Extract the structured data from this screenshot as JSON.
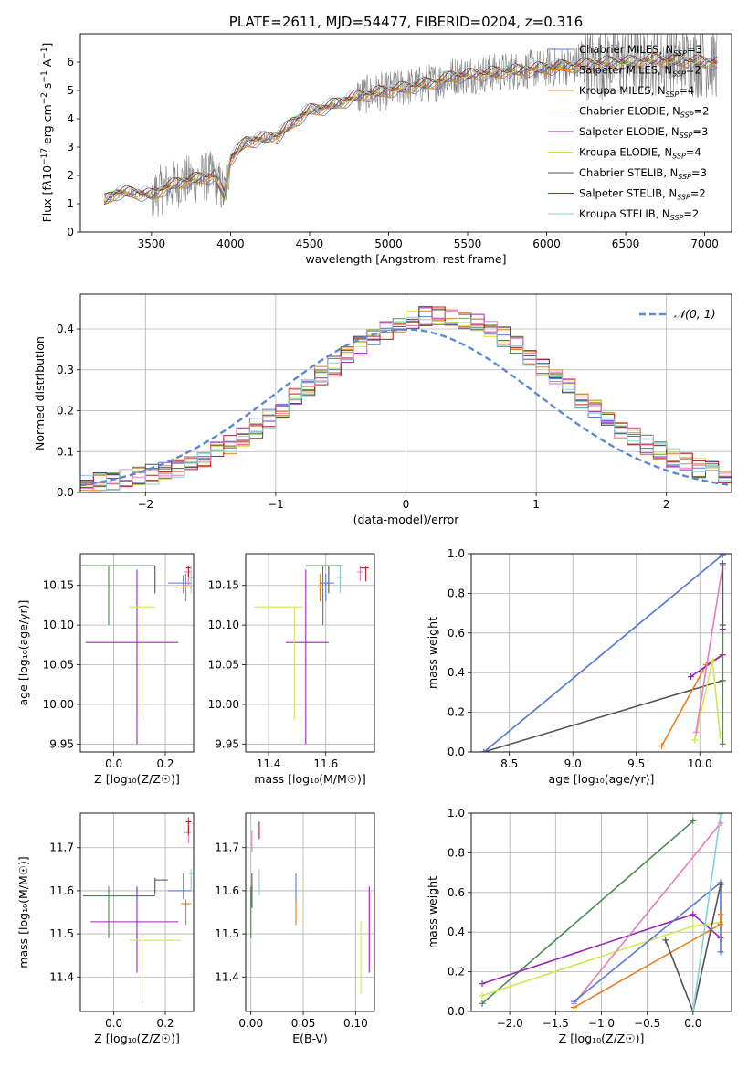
{
  "colors": {
    "Chabrier MILES": "#5b78d6",
    "Salpeter MILES": "#e87e22",
    "Kroupa MILES": "#d8862a",
    "Chabrier ELODIE": "#4a8a50",
    "Salpeter ELODIE": "#9b27b5",
    "Kroupa ELODIE": "#cfe84b",
    "Chabrier STELIB": "#555555",
    "Salpeter STELIB": "#b81d24",
    "Kroupa STELIB": "#86d1d7",
    "pink": "#e77cbf",
    "data": "#808080",
    "normal": "#5a88d8"
  },
  "chart_data": [
    {
      "id": "spectrum",
      "type": "line",
      "title": "PLATE=2611, MJD=54477, FIBERID=0204, z=0.316",
      "xlabel": "wavelength [Angstrom, rest frame]",
      "ylabel_html": "Flux [f<tspan font-style='italic'>λ</tspan>10<tspan dy='-5' font-size='9'>−17</tspan><tspan dy='5'> erg cm</tspan><tspan dy='-5' font-size='9'>−2</tspan><tspan dy='5'> s</tspan><tspan dy='-5' font-size='9'>−1</tspan><tspan dy='5'> A</tspan><tspan dy='-5' font-size='9'>−1</tspan><tspan dy='5'>]</tspan>",
      "xlim": [
        3050,
        7170
      ],
      "ylim": [
        0,
        7
      ],
      "xticks": [
        3500,
        4000,
        4500,
        5000,
        5500,
        6000,
        6500,
        7000
      ],
      "yticks": [
        0,
        1,
        2,
        3,
        4,
        5,
        6
      ],
      "continuum": [
        [
          3200,
          1.1
        ],
        [
          3280,
          1.4
        ],
        [
          3400,
          1.4
        ],
        [
          3500,
          1.3
        ],
        [
          3600,
          1.6
        ],
        [
          3700,
          1.8
        ],
        [
          3800,
          1.9
        ],
        [
          3900,
          2.0
        ],
        [
          3960,
          1.3
        ],
        [
          4000,
          2.6
        ],
        [
          4100,
          3.2
        ],
        [
          4200,
          3.3
        ],
        [
          4300,
          3.4
        ],
        [
          4400,
          3.9
        ],
        [
          4500,
          4.3
        ],
        [
          4600,
          4.4
        ],
        [
          4700,
          4.6
        ],
        [
          4800,
          4.8
        ],
        [
          4900,
          4.9
        ],
        [
          5000,
          5.0
        ],
        [
          5100,
          5.1
        ],
        [
          5200,
          5.2
        ],
        [
          5300,
          5.3
        ],
        [
          5400,
          5.5
        ],
        [
          5500,
          5.55
        ],
        [
          5600,
          5.6
        ],
        [
          5700,
          5.65
        ],
        [
          5800,
          5.7
        ],
        [
          5900,
          5.75
        ],
        [
          6000,
          5.8
        ],
        [
          6100,
          5.85
        ],
        [
          6200,
          5.9
        ],
        [
          6300,
          5.95
        ],
        [
          6400,
          6.0
        ],
        [
          6500,
          6.0
        ],
        [
          6600,
          6.05
        ],
        [
          6700,
          6.1
        ],
        [
          6800,
          6.05
        ],
        [
          6900,
          6.05
        ],
        [
          7000,
          6.0
        ],
        [
          7080,
          6.0
        ]
      ],
      "models": [
        {
          "name": "Chabrier MILES",
          "ssp": "3"
        },
        {
          "name": "Salpeter MILES",
          "ssp": "2"
        },
        {
          "name": "Kroupa MILES",
          "ssp": "4"
        },
        {
          "name": "Chabrier ELODIE",
          "ssp": "2"
        },
        {
          "name": "Salpeter ELODIE",
          "ssp": "3"
        },
        {
          "name": "Kroupa ELODIE",
          "ssp": "4"
        },
        {
          "name": "Chabrier STELIB",
          "ssp": "3"
        },
        {
          "name": "Salpeter STELIB",
          "ssp": "2"
        },
        {
          "name": "Kroupa STELIB",
          "ssp": "2"
        }
      ]
    },
    {
      "id": "residuals",
      "type": "histogram",
      "xlabel": "(data-model)/error",
      "ylabel": "Normed distribution",
      "xlim": [
        -2.5,
        2.5
      ],
      "ylim": [
        0,
        0.485
      ],
      "xticks": [
        -2,
        -1,
        0,
        1,
        2
      ],
      "xtick_labels": [
        "−2",
        "−1",
        "0",
        "1",
        "2"
      ],
      "yticks": [
        0.0,
        0.1,
        0.2,
        0.3,
        0.4
      ],
      "grid": true,
      "legend": "top-right",
      "legend_label": "𝒩(0, 1)",
      "bin_width": 0.1
    },
    {
      "id": "age_vs_Z",
      "type": "errorbar",
      "xlabel": "Z [log₁₀(Z/Z☉)]",
      "ylabel": "age  [log₁₀(age/yr)]",
      "xlim": [
        -0.13,
        0.31
      ],
      "ylim": [
        9.94,
        10.19
      ],
      "xticks": [
        0.0,
        0.2
      ],
      "yticks": [
        9.95,
        10.0,
        10.05,
        10.1,
        10.15
      ],
      "points": [
        {
          "c": "Chabrier ELODIE",
          "x": -0.02,
          "y": 10.175,
          "xe": [
            -0.13,
            0.16
          ],
          "ye": [
            10.1,
            10.175
          ]
        },
        {
          "c": "Chabrier STELIB",
          "x": 0.16,
          "y": 10.175,
          "xe": [
            0.16,
            0.16
          ],
          "ye": [
            10.14,
            10.175
          ]
        },
        {
          "c": "Salpeter ELODIE",
          "x": 0.09,
          "y": 10.078,
          "xe": [
            -0.11,
            0.25
          ],
          "ye": [
            9.95,
            10.17
          ]
        },
        {
          "c": "Kroupa ELODIE",
          "x": 0.11,
          "y": 10.123,
          "xe": [
            0.06,
            0.16
          ],
          "ye": [
            9.98,
            10.123
          ]
        },
        {
          "c": "Chabrier MILES",
          "x": 0.27,
          "y": 10.153,
          "xe": [
            0.21,
            0.3
          ],
          "ye": [
            10.14,
            10.163
          ]
        },
        {
          "c": "Salpeter MILES",
          "x": 0.28,
          "y": 10.148,
          "xe": [
            0.26,
            0.3
          ],
          "ye": [
            10.13,
            10.165
          ]
        },
        {
          "c": "pink",
          "x": 0.29,
          "y": 10.167,
          "xe": [
            0.27,
            0.3
          ],
          "ye": [
            10.15,
            10.175
          ]
        },
        {
          "c": "Salpeter STELIB",
          "x": 0.29,
          "y": 10.172,
          "xe": [
            0.28,
            0.3
          ],
          "ye": [
            10.16,
            10.175
          ]
        },
        {
          "c": "Kroupa STELIB",
          "x": 0.3,
          "y": 10.16,
          "xe": [
            0.29,
            0.31
          ],
          "ye": [
            10.14,
            10.175
          ]
        }
      ]
    },
    {
      "id": "age_vs_mass",
      "type": "errorbar",
      "xlabel": "mass [log₁₀(M/M☉)]",
      "ylabel": "",
      "xlim": [
        11.32,
        11.77
      ],
      "ylim": [
        9.94,
        10.19
      ],
      "xticks": [
        11.4,
        11.6
      ],
      "yticks": [
        9.95,
        10.0,
        10.05,
        10.1,
        10.15
      ],
      "points": [
        {
          "c": "Chabrier ELODIE",
          "x": 11.59,
          "y": 10.175,
          "xe": [
            11.53,
            11.66
          ],
          "ye": [
            10.1,
            10.175
          ]
        },
        {
          "c": "Chabrier STELIB",
          "x": 11.61,
          "y": 10.175,
          "xe": [
            11.61,
            11.61
          ],
          "ye": [
            10.14,
            10.175
          ]
        },
        {
          "c": "Salpeter ELODIE",
          "x": 11.53,
          "y": 10.078,
          "xe": [
            11.46,
            11.61
          ],
          "ye": [
            9.95,
            10.17
          ]
        },
        {
          "c": "Kroupa ELODIE",
          "x": 11.49,
          "y": 10.123,
          "xe": [
            11.35,
            11.52
          ],
          "ye": [
            9.98,
            10.123
          ]
        },
        {
          "c": "Chabrier MILES",
          "x": 11.6,
          "y": 10.153,
          "xe": [
            11.58,
            11.63
          ],
          "ye": [
            10.13,
            10.165
          ]
        },
        {
          "c": "Salpeter MILES",
          "x": 11.58,
          "y": 10.148,
          "xe": [
            11.57,
            11.59
          ],
          "ye": [
            10.13,
            10.165
          ]
        },
        {
          "c": "pink",
          "x": 11.72,
          "y": 10.167,
          "xe": [
            11.71,
            11.73
          ],
          "ye": [
            10.155,
            10.175
          ]
        },
        {
          "c": "Salpeter STELIB",
          "x": 11.74,
          "y": 10.172,
          "xe": [
            11.72,
            11.75
          ],
          "ye": [
            10.155,
            10.175
          ]
        },
        {
          "c": "Kroupa STELIB",
          "x": 11.65,
          "y": 10.16,
          "xe": [
            11.64,
            11.66
          ],
          "ye": [
            10.14,
            10.175
          ]
        }
      ]
    },
    {
      "id": "weight_vs_age",
      "type": "line",
      "xlabel": "age  [log₁₀(age/yr)]",
      "ylabel": "mass weight",
      "xlim": [
        8.2,
        10.25
      ],
      "ylim": [
        0,
        1.0
      ],
      "xticks": [
        8.5,
        9.0,
        9.5,
        10.0
      ],
      "yticks": [
        0.0,
        0.2,
        0.4,
        0.6,
        0.8,
        1.0
      ],
      "series": [
        {
          "c": "Chabrier STELIB",
          "pts": [
            [
              8.3,
              0.0
            ],
            [
              10.18,
              0.36
            ]
          ]
        },
        {
          "c": "Kroupa STELIB",
          "pts": [
            [
              8.3,
              0.0
            ],
            [
              10.18,
              0.995
            ]
          ]
        },
        {
          "c": "Chabrier MILES",
          "pts": [
            [
              8.3,
              0.0
            ],
            [
              10.18,
              0.995
            ]
          ]
        },
        {
          "c": "Salpeter MILES",
          "pts": [
            [
              9.7,
              0.03
            ],
            [
              10.05,
              0.44
            ],
            [
              10.18,
              0.49
            ]
          ]
        },
        {
          "c": "Salpeter ELODIE",
          "pts": [
            [
              9.93,
              0.38
            ],
            [
              10.18,
              0.49
            ],
            [
              10.18,
              0.62
            ]
          ]
        },
        {
          "c": "Kroupa ELODIE",
          "pts": [
            [
              9.96,
              0.06
            ],
            [
              10.1,
              0.46
            ],
            [
              10.16,
              0.08
            ]
          ]
        },
        {
          "c": "Chabrier ELODIE",
          "pts": [
            [
              10.18,
              0.04
            ],
            [
              10.18,
              0.95
            ]
          ]
        },
        {
          "c": "pink",
          "pts": [
            [
              9.97,
              0.1
            ],
            [
              10.18,
              0.94
            ]
          ]
        },
        {
          "c": "Chabrier STELIB",
          "pts": [
            [
              10.18,
              0.64
            ],
            [
              10.18,
              0.95
            ]
          ]
        }
      ]
    },
    {
      "id": "mass_vs_Z",
      "type": "errorbar",
      "xlabel": "Z [log₁₀(Z/Z☉)]",
      "ylabel": "mass [log₁₀(M/M☉)]",
      "xlim": [
        -0.13,
        0.31
      ],
      "ylim": [
        11.32,
        11.78
      ],
      "xticks": [
        0.0,
        0.2
      ],
      "yticks": [
        11.4,
        11.5,
        11.6,
        11.7
      ],
      "points": [
        {
          "c": "Chabrier ELODIE",
          "x": -0.02,
          "y": 11.588,
          "xe": [
            -0.12,
            0.16
          ],
          "ye": [
            11.49,
            11.61
          ]
        },
        {
          "c": "Salpeter ELODIE",
          "x": 0.09,
          "y": 11.528,
          "xe": [
            -0.09,
            0.25
          ],
          "ye": [
            11.41,
            11.61
          ]
        },
        {
          "c": "Kroupa ELODIE",
          "x": 0.11,
          "y": 11.485,
          "xe": [
            0.06,
            0.26
          ],
          "ye": [
            11.34,
            11.5
          ]
        },
        {
          "c": "Chabrier STELIB",
          "x": 0.16,
          "y": 11.625,
          "xe": [
            0.16,
            0.21
          ],
          "ye": [
            11.59,
            11.63
          ]
        },
        {
          "c": "Chabrier MILES",
          "x": 0.27,
          "y": 11.6,
          "xe": [
            0.21,
            0.3
          ],
          "ye": [
            11.58,
            11.64
          ]
        },
        {
          "c": "Salpeter MILES",
          "x": 0.28,
          "y": 11.57,
          "xe": [
            0.26,
            0.3
          ],
          "ye": [
            11.52,
            11.58
          ]
        },
        {
          "c": "pink",
          "x": 0.29,
          "y": 11.735,
          "xe": [
            0.27,
            0.3
          ],
          "ye": [
            11.71,
            11.75
          ]
        },
        {
          "c": "Salpeter STELIB",
          "x": 0.29,
          "y": 11.76,
          "xe": [
            0.28,
            0.3
          ],
          "ye": [
            11.73,
            11.77
          ]
        },
        {
          "c": "Kroupa STELIB",
          "x": 0.3,
          "y": 11.64,
          "xe": [
            0.29,
            0.31
          ],
          "ye": [
            11.6,
            11.65
          ]
        }
      ]
    },
    {
      "id": "mass_vs_ebv",
      "type": "errorbar",
      "xlabel": "E(B-V)",
      "ylabel": "",
      "xlim": [
        -0.005,
        0.118
      ],
      "ylim": [
        11.32,
        11.78
      ],
      "xticks": [
        0.0,
        0.05,
        0.1
      ],
      "yticks": [
        11.4,
        11.5,
        11.6,
        11.7
      ],
      "points": [
        {
          "c": "Chabrier ELODIE",
          "x": 0.0,
          "y": 11.59,
          "xe": [
            0.0,
            0.0
          ],
          "ye": [
            11.49,
            11.61
          ]
        },
        {
          "c": "Chabrier STELIB",
          "x": 0.001,
          "y": 11.6,
          "xe": [
            0.001,
            0.001
          ],
          "ye": [
            11.56,
            11.64
          ]
        },
        {
          "c": "pink",
          "x": 0.001,
          "y": 11.71,
          "xe": [
            0.001,
            0.001
          ],
          "ye": [
            11.69,
            11.74
          ]
        },
        {
          "c": "Salpeter STELIB",
          "x": 0.008,
          "y": 11.74,
          "xe": [
            0.008,
            0.008
          ],
          "ye": [
            11.72,
            11.76
          ]
        },
        {
          "c": "Kroupa STELIB",
          "x": 0.008,
          "y": 11.62,
          "xe": [
            0.008,
            0.008
          ],
          "ye": [
            11.59,
            11.65
          ]
        },
        {
          "c": "Chabrier MILES",
          "x": 0.043,
          "y": 11.6,
          "xe": [
            0.043,
            0.043
          ],
          "ye": [
            11.57,
            11.64
          ]
        },
        {
          "c": "Salpeter MILES",
          "x": 0.043,
          "y": 11.55,
          "xe": [
            0.043,
            0.043
          ],
          "ye": [
            11.52,
            11.58
          ]
        },
        {
          "c": "Kroupa ELODIE",
          "x": 0.105,
          "y": 11.45,
          "xe": [
            0.105,
            0.105
          ],
          "ye": [
            11.36,
            11.53
          ]
        },
        {
          "c": "Salpeter ELODIE",
          "x": 0.113,
          "y": 11.52,
          "xe": [
            0.113,
            0.113
          ],
          "ye": [
            11.41,
            11.61
          ]
        }
      ]
    },
    {
      "id": "weight_vs_Z",
      "type": "line",
      "xlabel": "Z [log₁₀(Z/Z☉)]",
      "ylabel": "mass weight",
      "xlim": [
        -2.42,
        0.42
      ],
      "ylim": [
        0,
        1.0
      ],
      "xticks": [
        -2.0,
        -1.5,
        -1.0,
        -0.5,
        0.0
      ],
      "xtick_labels": [
        "−2.0",
        "−1.5",
        "−1.0",
        "−0.5",
        "0.0"
      ],
      "yticks": [
        0.0,
        0.2,
        0.4,
        0.6,
        0.8,
        1.0
      ],
      "series": [
        {
          "c": "Chabrier ELODIE",
          "pts": [
            [
              -2.3,
              0.04
            ],
            [
              0.0,
              0.96
            ]
          ]
        },
        {
          "c": "Salpeter ELODIE",
          "pts": [
            [
              -2.3,
              0.14
            ],
            [
              0.0,
              0.49
            ],
            [
              0.3,
              0.37
            ]
          ]
        },
        {
          "c": "Kroupa ELODIE",
          "pts": [
            [
              -2.3,
              0.08
            ],
            [
              0.0,
              0.43
            ],
            [
              0.3,
              0.45
            ]
          ]
        },
        {
          "c": "pink",
          "pts": [
            [
              -1.3,
              0.04
            ],
            [
              0.3,
              0.95
            ]
          ]
        },
        {
          "c": "Chabrier MILES",
          "pts": [
            [
              -1.3,
              0.05
            ],
            [
              0.3,
              0.65
            ],
            [
              0.3,
              0.3
            ]
          ]
        },
        {
          "c": "Salpeter MILES",
          "pts": [
            [
              -1.3,
              0.02
            ],
            [
              0.3,
              0.44
            ],
            [
              0.3,
              0.49
            ]
          ]
        },
        {
          "c": "Chabrier STELIB",
          "pts": [
            [
              -0.3,
              0.36
            ],
            [
              0.0,
              0.0
            ],
            [
              0.3,
              0.64
            ]
          ]
        },
        {
          "c": "Kroupa STELIB",
          "pts": [
            [
              0.0,
              0.0
            ],
            [
              0.3,
              0.995
            ]
          ]
        }
      ]
    }
  ]
}
